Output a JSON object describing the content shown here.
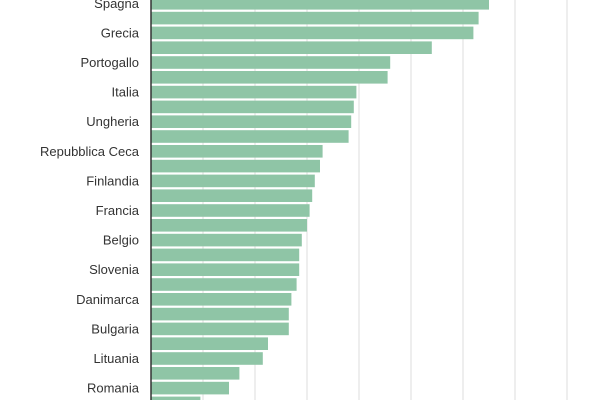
{
  "chart_data": {
    "type": "bar",
    "orientation": "horizontal",
    "labeled_categories": [
      "Spagna",
      "Grecia",
      "Portogallo",
      "Italia",
      "Ungheria",
      "Repubblica Ceca",
      "Finlandia",
      "Francia",
      "Belgio",
      "Slovenia",
      "Danimarca",
      "Bulgaria",
      "Lituania",
      "Romania"
    ],
    "values": [
      65.0,
      63.0,
      62.0,
      54.0,
      46.0,
      45.5,
      39.5,
      39.0,
      38.5,
      38.0,
      33.0,
      32.5,
      31.5,
      31.0,
      30.5,
      30.0,
      29.0,
      28.5,
      28.5,
      28.0,
      27.0,
      26.5,
      26.5,
      22.5,
      21.5,
      17.0,
      15.0,
      9.5
    ],
    "label_every": 2,
    "xlim": [
      0,
      80
    ],
    "grid": true,
    "bar_color": "#8fc5a6",
    "axis_color": "#333333",
    "grid_color": "#dddddd"
  }
}
